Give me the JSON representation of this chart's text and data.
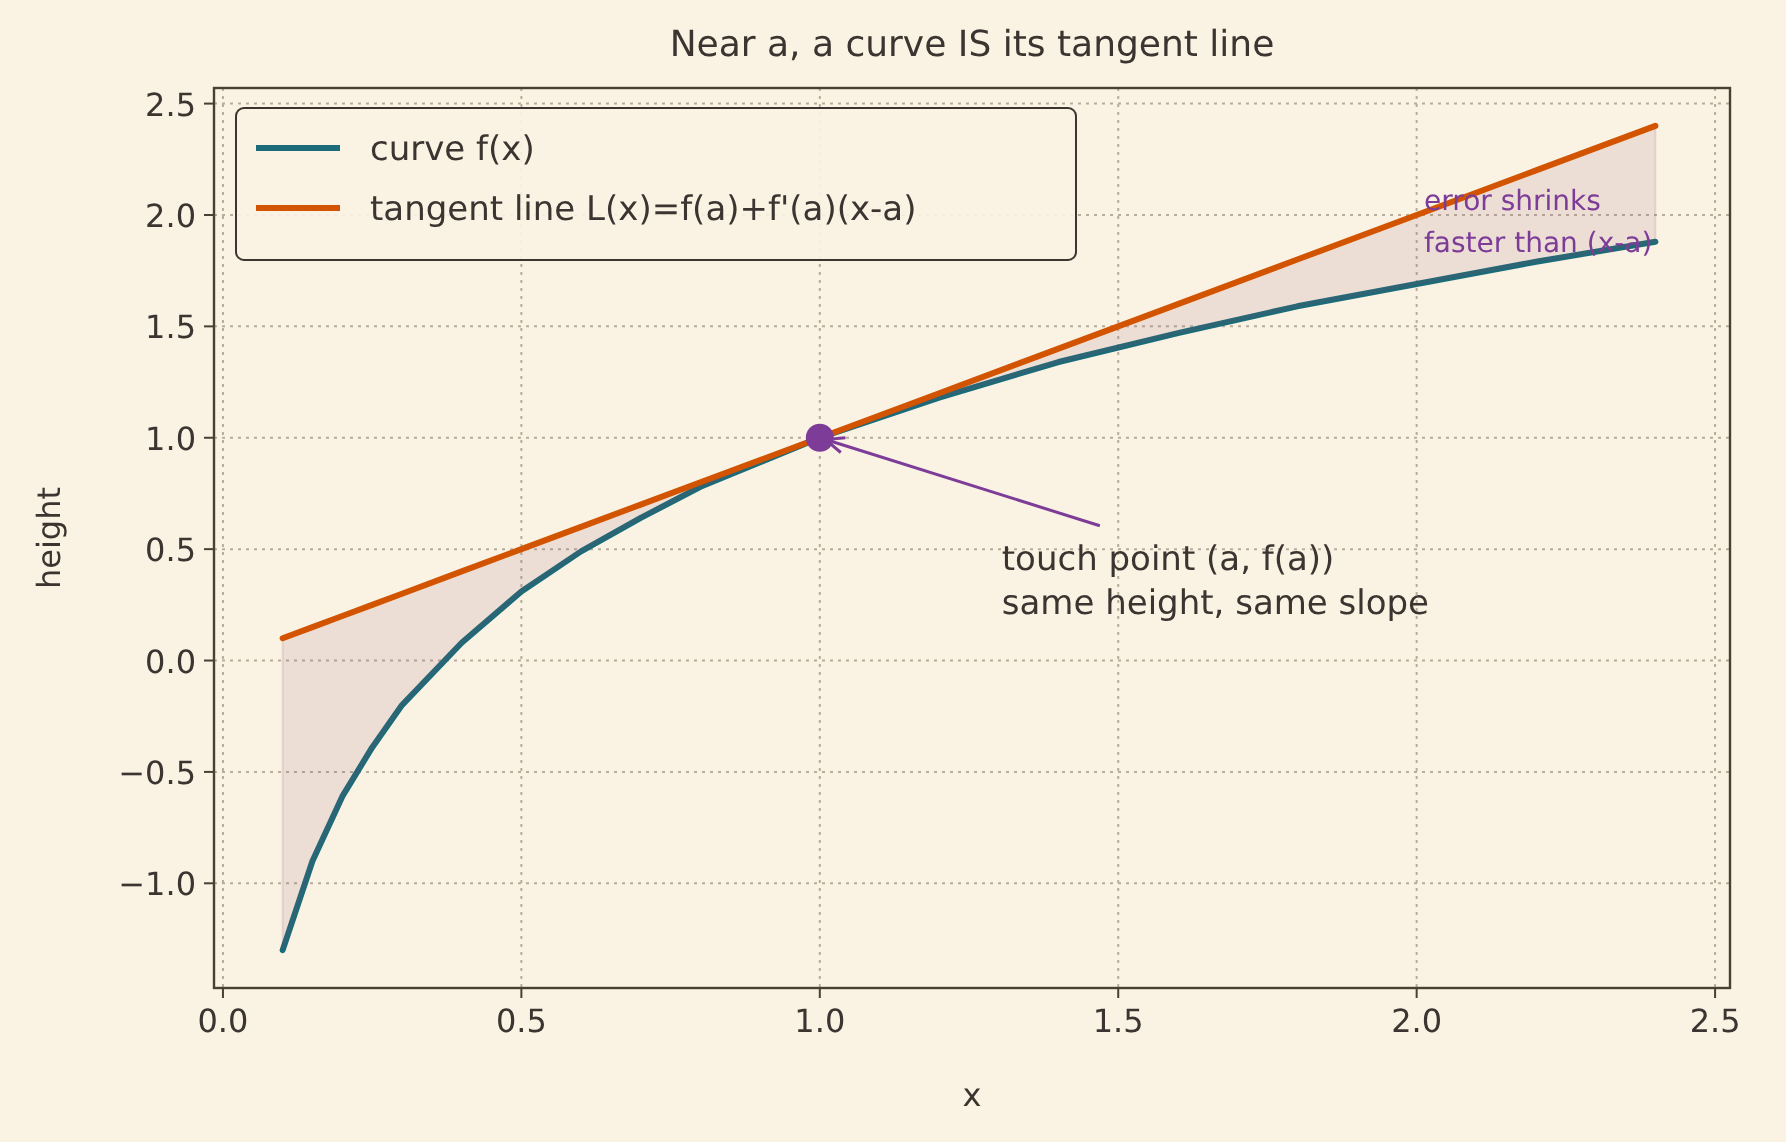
{
  "chart_data": {
    "type": "line",
    "title": "Near a, a curve IS its tangent line",
    "xlabel": "x",
    "ylabel": "height",
    "x": [
      0.1,
      0.15,
      0.2,
      0.25,
      0.3,
      0.4,
      0.5,
      0.6,
      0.7,
      0.8,
      0.9,
      1.0,
      1.2,
      1.4,
      1.6,
      1.8,
      2.0,
      2.2,
      2.4
    ],
    "series": [
      {
        "name": "curve f(x)",
        "color": "#1b6b78",
        "values": [
          -1.3,
          -0.9,
          -0.61,
          -0.39,
          -0.2,
          0.08,
          0.31,
          0.49,
          0.64,
          0.78,
          0.89,
          1.0,
          1.18,
          1.34,
          1.47,
          1.59,
          1.69,
          1.79,
          1.88
        ]
      },
      {
        "name": "tangent line L(x)=f(a)+f'(a)(x-a)",
        "color": "#d35400",
        "values": [
          0.1,
          0.15,
          0.2,
          0.25,
          0.3,
          0.4,
          0.5,
          0.6,
          0.7,
          0.8,
          0.9,
          1.0,
          1.2,
          1.4,
          1.6,
          1.8,
          2.0,
          2.2,
          2.4
        ],
        "lower": [
          -1.3,
          -0.9,
          -0.61,
          -0.39,
          -0.2,
          0.08,
          0.31,
          0.49,
          0.64,
          0.78,
          0.89,
          1.0,
          1.18,
          1.34,
          1.47,
          1.59,
          1.69,
          1.79,
          1.88
        ],
        "upper": [
          0.1,
          0.15,
          0.2,
          0.25,
          0.3,
          0.4,
          0.5,
          0.6,
          0.7,
          0.8,
          0.9,
          1.0,
          1.2,
          1.4,
          1.6,
          1.8,
          2.0,
          2.2,
          2.4
        ]
      },
      {
        "type": "scatter",
        "color": "#7d3c98",
        "marker": "circle",
        "x": [
          1.0
        ],
        "values": [
          1.0
        ]
      }
    ],
    "xlim": [
      -0.015,
      2.525
    ],
    "ylim": [
      -1.47,
      2.57
    ],
    "xticks": [
      {
        "value": 0,
        "label": "0.0"
      },
      0.5,
      {
        "value": 1,
        "label": "1.0"
      },
      1.5,
      {
        "value": 2,
        "label": "2.0"
      },
      2.5
    ],
    "yticks": [
      {
        "value": -1,
        "label": "−1.0"
      },
      {
        "value": -0.5,
        "label": "−0.5"
      },
      {
        "value": 0,
        "label": "0.0"
      },
      0.5,
      {
        "value": 1,
        "label": "1.0"
      },
      1.5,
      {
        "value": 2,
        "label": "2.0"
      },
      2.5
    ],
    "grid": true,
    "legend": "top left",
    "line_style": "solid",
    "annotations": [
      {
        "text": "touch point (a, f(a))\nsame height, same slope",
        "x": 1.0,
        "y": 1.0
      },
      "error shrinks\nfaster than (x-a)"
    ]
  }
}
